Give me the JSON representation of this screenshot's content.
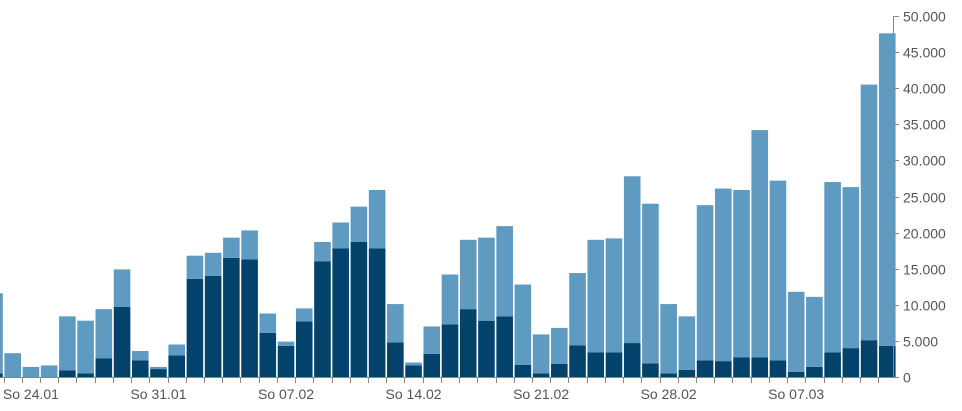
{
  "chart_data": {
    "type": "bar",
    "stacked": true,
    "grid": false,
    "y_axis_position": "right",
    "ylim": [
      0,
      50000
    ],
    "yticks": [
      0,
      5000,
      10000,
      15000,
      20000,
      25000,
      30000,
      35000,
      40000,
      45000,
      50000
    ],
    "ytick_labels": [
      "0",
      "5.000",
      "10.000",
      "15.000",
      "20.000",
      "25.000",
      "30.000",
      "35.000",
      "40.000",
      "45.000",
      "50.000"
    ],
    "x_labels": [
      {
        "index": 2,
        "label": "So 24.01"
      },
      {
        "index": 9,
        "label": "So 31.01"
      },
      {
        "index": 16,
        "label": "So 07.02"
      },
      {
        "index": 23,
        "label": "So 14.02"
      },
      {
        "index": 30,
        "label": "So 21.02"
      },
      {
        "index": 37,
        "label": "So 28.02"
      },
      {
        "index": 44,
        "label": "So 07.03"
      }
    ],
    "colors": {
      "dark": "#03426b",
      "light": "#5f9bc0",
      "axis": "#888888"
    },
    "series": [
      {
        "values": [
          500,
          0,
          0,
          0,
          900,
          500,
          2600,
          9700,
          2300,
          1100,
          3000,
          13600,
          14000,
          16500,
          16300,
          6100,
          4300,
          7700,
          16000,
          17800,
          18700,
          17800,
          4800,
          1600,
          3200,
          7300,
          9400,
          7800,
          8400,
          1700,
          500,
          1800,
          4400,
          3400,
          3400,
          4700,
          1900,
          500,
          1000,
          2300,
          2200,
          2700,
          2700,
          2300,
          700,
          1400,
          3400,
          4000,
          5100,
          4300
        ]
      },
      {
        "values": [
          11100,
          3300,
          1400,
          1600,
          7500,
          7300,
          6800,
          5200,
          1300,
          300,
          1500,
          3200,
          3200,
          2800,
          4000,
          2700,
          600,
          1800,
          2700,
          3600,
          4900,
          8100,
          5300,
          400,
          3800,
          6900,
          9600,
          11500,
          12500,
          11100,
          5400,
          5000,
          10000,
          15600,
          15800,
          23100,
          22100,
          9600,
          7400,
          21500,
          23900,
          23200,
          31500,
          24900,
          11100,
          9700,
          23600,
          22300,
          35400,
          43300
        ]
      }
    ]
  }
}
